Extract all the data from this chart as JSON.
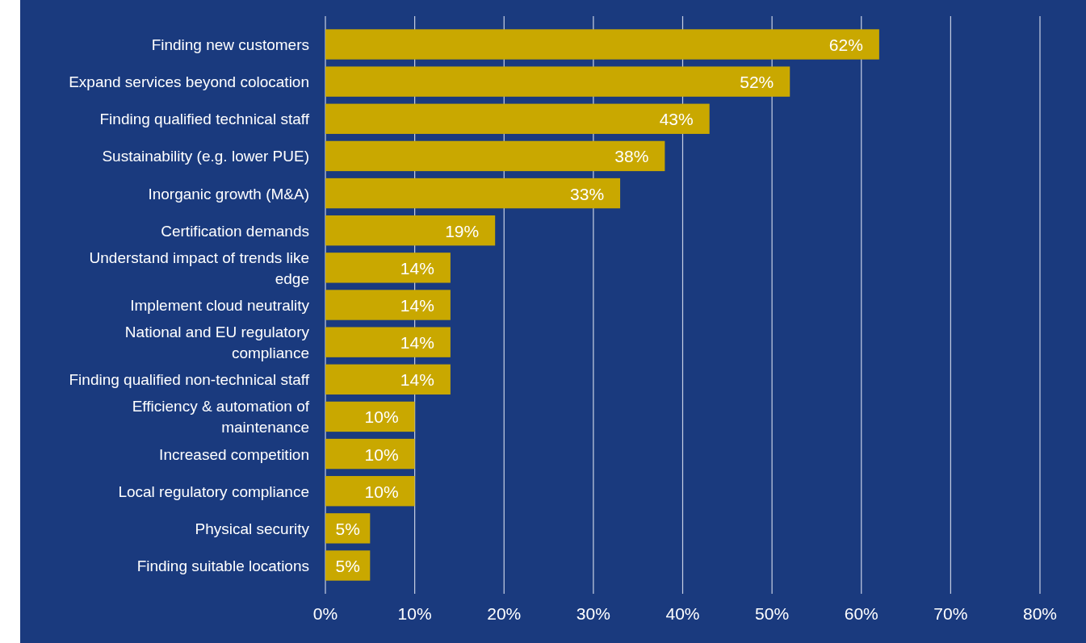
{
  "chart_data": {
    "type": "bar",
    "orientation": "horizontal",
    "categories": [
      "Finding new customers",
      "Expand services beyond colocation",
      "Finding qualified technical staff",
      "Sustainability (e.g. lower PUE)",
      "Inorganic growth (M&A)",
      "Certification demands",
      "Understand impact of trends like edge",
      "Implement cloud neutrality",
      "National and EU regulatory compliance",
      "Finding qualified non-technical staff",
      "Efficiency & automation of maintenance",
      "Increased competition",
      "Local regulatory compliance",
      "Physical security",
      "Finding suitable locations"
    ],
    "values": [
      62,
      52,
      43,
      38,
      33,
      19,
      14,
      14,
      14,
      14,
      10,
      10,
      10,
      5,
      5
    ],
    "value_labels": [
      "62%",
      "52%",
      "43%",
      "38%",
      "33%",
      "19%",
      "14%",
      "14%",
      "14%",
      "14%",
      "10%",
      "10%",
      "10%",
      "5%",
      "5%"
    ],
    "color": "#c9a800",
    "xlim": [
      0,
      80
    ],
    "xticks": [
      {
        "value": 0,
        "label": "0%"
      },
      {
        "value": 10,
        "label": "10%"
      },
      {
        "value": 20,
        "label": "20%"
      },
      {
        "value": 30,
        "label": "30%"
      },
      {
        "value": 40,
        "label": "40%"
      },
      {
        "value": 50,
        "label": "50%"
      },
      {
        "value": 60,
        "label": "60%"
      },
      {
        "value": 70,
        "label": "70%"
      },
      {
        "value": 80,
        "label": "80%"
      }
    ],
    "grid": "x"
  }
}
